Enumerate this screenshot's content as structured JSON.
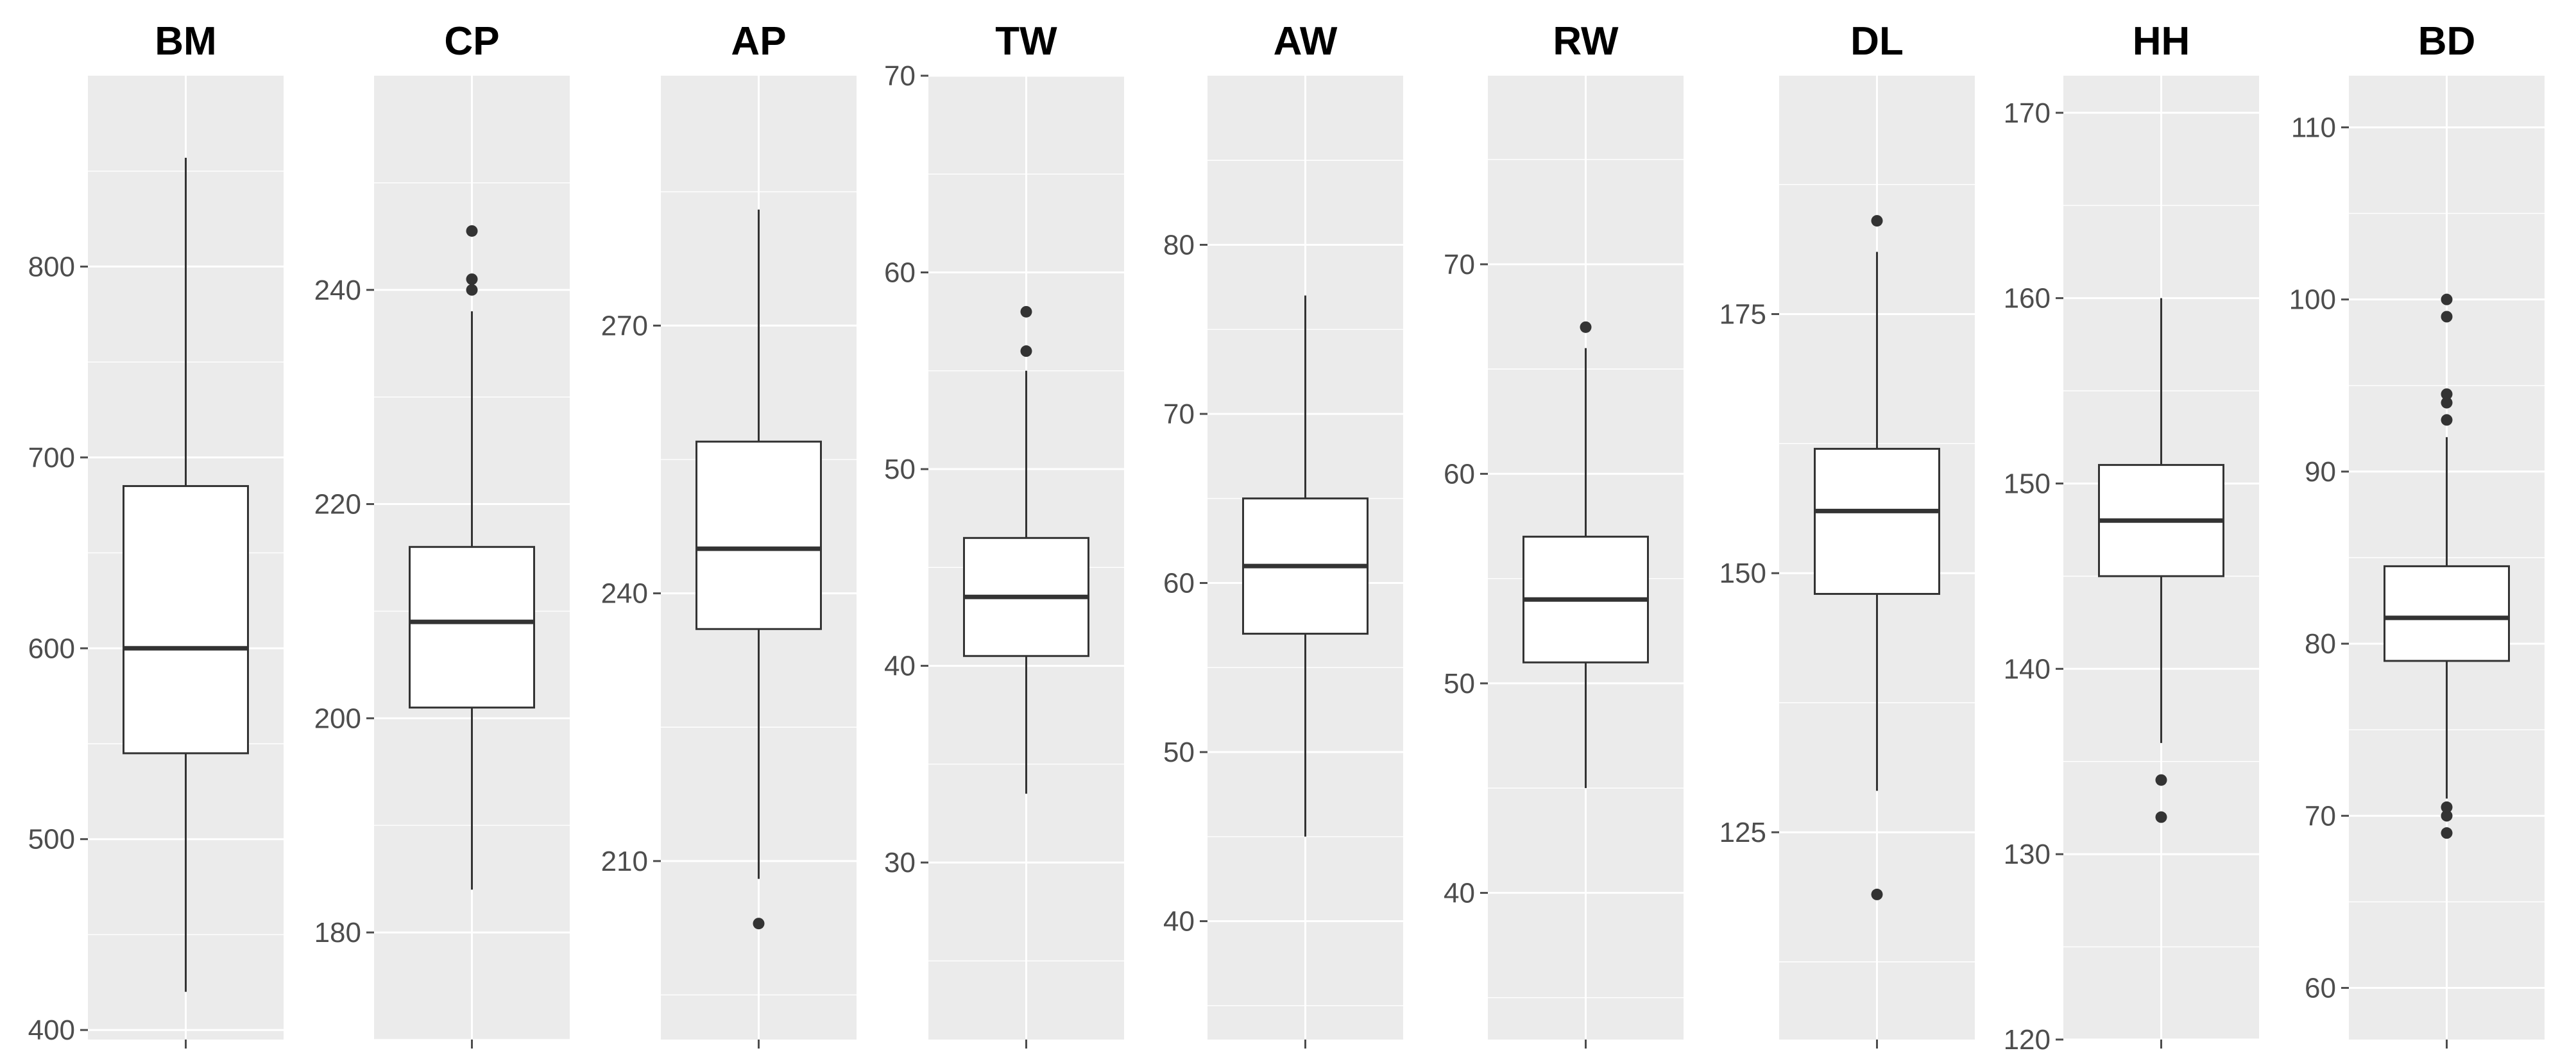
{
  "chart_data": {
    "type": "box",
    "layout": "small-multiples",
    "grid": true,
    "colors": {
      "panel_background": "#ebebeb",
      "grid": "#ffffff",
      "box_fill": "#ffffff",
      "box_line": "#333333",
      "tick_label": "#4d4d4d",
      "title": "#000000"
    },
    "panels": [
      {
        "title": "BM",
        "ylim": [
          395,
          900
        ],
        "ticks": [
          400,
          500,
          600,
          700,
          800
        ],
        "box": {
          "q1": 545,
          "median": 600,
          "q3": 685,
          "whisker_low": 420,
          "whisker_high": 857
        },
        "outliers": []
      },
      {
        "title": "CP",
        "ylim": [
          170,
          260
        ],
        "ticks": [
          180,
          200,
          220,
          240
        ],
        "box": {
          "q1": 201,
          "median": 209,
          "q3": 216,
          "whisker_low": 184,
          "whisker_high": 238
        },
        "outliers": [
          240,
          241,
          245.5
        ]
      },
      {
        "title": "AP",
        "ylim": [
          190,
          298
        ],
        "ticks": [
          210,
          240,
          270
        ],
        "box": {
          "q1": 236,
          "median": 245,
          "q3": 257,
          "whisker_low": 208,
          "whisker_high": 283
        },
        "outliers": [
          203
        ]
      },
      {
        "title": "TW",
        "ylim": [
          21,
          70
        ],
        "ticks": [
          30,
          40,
          50,
          60,
          70
        ],
        "box": {
          "q1": 40.5,
          "median": 43.5,
          "q3": 46.5,
          "whisker_low": 33.5,
          "whisker_high": 55
        },
        "outliers": [
          56,
          58
        ]
      },
      {
        "title": "AW",
        "ylim": [
          33,
          90
        ],
        "ticks": [
          40,
          50,
          60,
          70,
          80
        ],
        "box": {
          "q1": 57,
          "median": 61,
          "q3": 65,
          "whisker_low": 45,
          "whisker_high": 77
        },
        "outliers": []
      },
      {
        "title": "RW",
        "ylim": [
          33,
          79
        ],
        "ticks": [
          40,
          50,
          60,
          70
        ],
        "box": {
          "q1": 51,
          "median": 54,
          "q3": 57,
          "whisker_low": 45,
          "whisker_high": 66
        },
        "outliers": [
          67
        ]
      },
      {
        "title": "DL",
        "ylim": [
          105,
          198
        ],
        "ticks": [
          125,
          150,
          175
        ],
        "box": {
          "q1": 148,
          "median": 156,
          "q3": 162,
          "whisker_low": 129,
          "whisker_high": 181
        },
        "outliers": [
          119,
          184
        ]
      },
      {
        "title": "HH",
        "ylim": [
          120,
          172
        ],
        "ticks": [
          120,
          130,
          140,
          150,
          160,
          170
        ],
        "box": {
          "q1": 145,
          "median": 148,
          "q3": 151,
          "whisker_low": 136,
          "whisker_high": 160
        },
        "outliers": [
          132,
          134
        ]
      },
      {
        "title": "BD",
        "ylim": [
          57,
          113
        ],
        "ticks": [
          60,
          70,
          80,
          90,
          100,
          110
        ],
        "box": {
          "q1": 79,
          "median": 81.5,
          "q3": 84.5,
          "whisker_low": 71,
          "whisker_high": 92
        },
        "outliers": [
          69,
          70,
          70.5,
          93,
          94,
          94.5,
          99,
          100
        ]
      }
    ]
  }
}
